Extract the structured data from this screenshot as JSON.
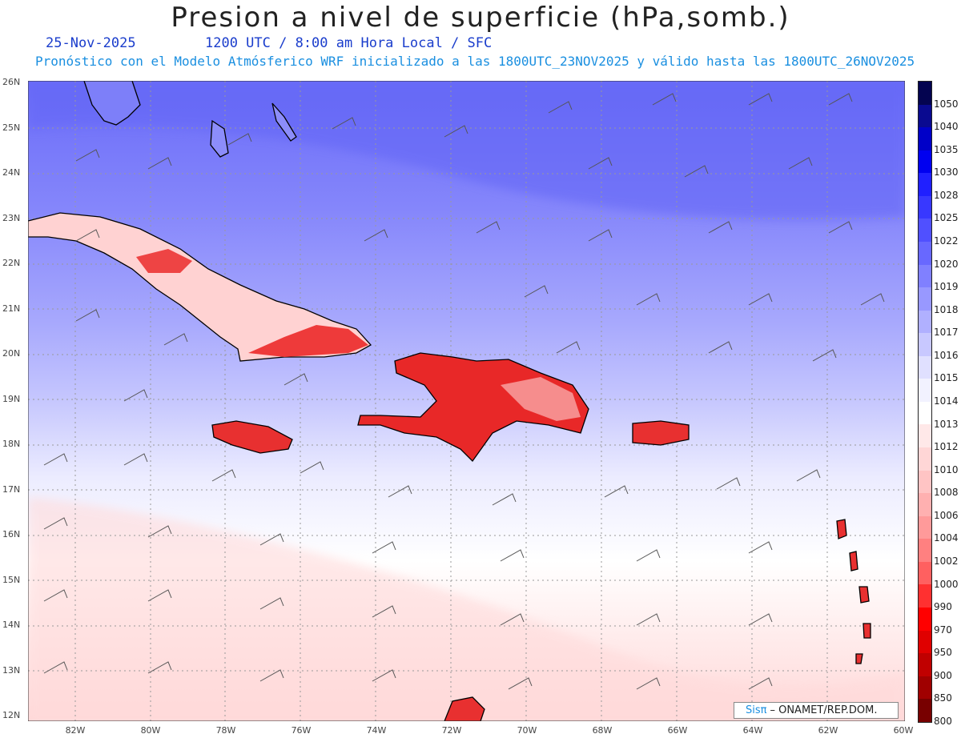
{
  "title": "Presion a nivel de superficie (hPa,somb.)",
  "date": "25-Nov-2025",
  "time_info": "1200 UTC / 8:00 am Hora Local / SFC",
  "forecast_info": "Pronóstico con el Modelo Atmósferico WRF inicializado a las 1800UTC_23NOV2025 y válido hasta las  1800UTC_26NOV2025",
  "lat_labels": [
    "26N",
    "25N",
    "24N",
    "23N",
    "22N",
    "21N",
    "20N",
    "19N",
    "18N",
    "17N",
    "16N",
    "15N",
    "14N",
    "13N",
    "12N"
  ],
  "lon_labels": [
    "82W",
    "80W",
    "78W",
    "76W",
    "74W",
    "72W",
    "70W",
    "68W",
    "66W",
    "64W",
    "62W",
    "60W"
  ],
  "colorbar": {
    "levels": [
      "1050",
      "1040",
      "1035",
      "1030",
      "1028",
      "1025",
      "1022",
      "1020",
      "1019",
      "1018",
      "1017",
      "1016",
      "1015",
      "1014",
      "1013",
      "1012",
      "1010",
      "1008",
      "1006",
      "1004",
      "1002",
      "1000",
      "990",
      "970",
      "950",
      "900",
      "850",
      "800"
    ],
    "colors": [
      "#040450",
      "#0a0a90",
      "#0000c8",
      "#0000f0",
      "#2020ff",
      "#3838ff",
      "#5050ff",
      "#6868ff",
      "#8080ff",
      "#9898ff",
      "#b0b0ff",
      "#c8c8ff",
      "#e0e0ff",
      "#f2f2ff",
      "#ffffff",
      "#ffe8e8",
      "#ffd6d6",
      "#ffc4c4",
      "#ffb0b0",
      "#ff9a9a",
      "#ff8080",
      "#ff6060",
      "#ff3030",
      "#ff0000",
      "#e00000",
      "#c00000",
      "#a00000",
      "#780000"
    ]
  },
  "credit": {
    "logo": "Sisπ",
    "text": "– ONAMET/REP.DOM."
  }
}
